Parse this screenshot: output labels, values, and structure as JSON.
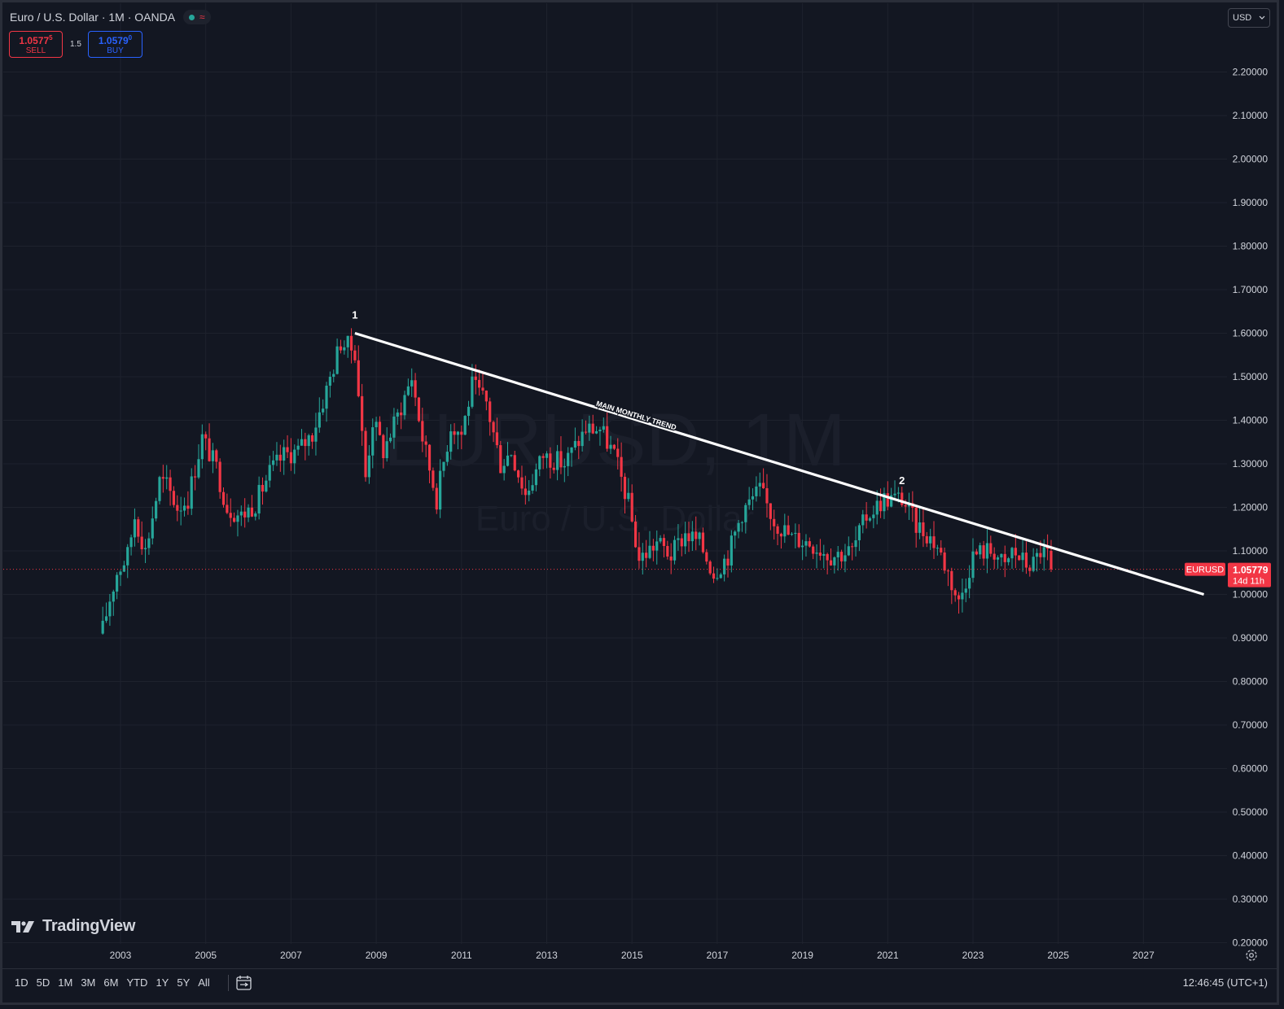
{
  "header": {
    "title": "Euro / U.S. Dollar · 1M · OANDA"
  },
  "trade": {
    "sell_price_main": "1.0577",
    "sell_price_sup": "5",
    "sell_label": "SELL",
    "spread": "1.5",
    "buy_price_main": "1.0579",
    "buy_price_sup": "0",
    "buy_label": "BUY"
  },
  "currency_button": {
    "label": "USD"
  },
  "price_tag": {
    "symbol": "EURUSD",
    "price": "1.05779",
    "countdown": "14d 11h"
  },
  "timeframes": [
    "1D",
    "5D",
    "1M",
    "3M",
    "6M",
    "YTD",
    "1Y",
    "5Y",
    "All"
  ],
  "clock": "12:46:45 (UTC+1)",
  "logo": {
    "text": "TradingView"
  },
  "watermark": {
    "line1": "EURUSD, 1M",
    "line2": "Euro / U.S. Dollar"
  },
  "colors": {
    "up": "#26a69a",
    "down": "#f23645",
    "background": "#131722",
    "grid": "#1e222d",
    "trend": "#ffffff"
  },
  "icons": [
    "status-dot-icon",
    "delay-wave-icon",
    "chevron-down-icon",
    "calendar-range-icon",
    "gear-icon",
    "tradingview-logo-icon"
  ],
  "chart_data": {
    "type": "candlestick",
    "symbol": "EURUSD",
    "timeframe": "1M",
    "x_ticks": [
      "2003",
      "2005",
      "2007",
      "2009",
      "2011",
      "2013",
      "2015",
      "2017",
      "2019",
      "2021",
      "2023",
      "2025",
      "2027"
    ],
    "y_ticks": [
      "2.20000",
      "2.10000",
      "2.00000",
      "1.90000",
      "1.80000",
      "1.70000",
      "1.60000",
      "1.50000",
      "1.40000",
      "1.30000",
      "1.20000",
      "1.10000",
      "1.00000",
      "0.90000",
      "0.80000",
      "0.70000",
      "0.60000",
      "0.50000",
      "0.40000",
      "0.30000",
      "0.20000"
    ],
    "ylim": [
      0.2,
      2.28
    ],
    "last_price": 1.05779,
    "close_path": [
      [
        "2002-08",
        0.92
      ],
      [
        "2002-10",
        0.99
      ],
      [
        "2002-12",
        1.05
      ],
      [
        "2003-03",
        1.09
      ],
      [
        "2003-05",
        1.18
      ],
      [
        "2003-08",
        1.1
      ],
      [
        "2003-12",
        1.26
      ],
      [
        "2004-02",
        1.25
      ],
      [
        "2004-05",
        1.2
      ],
      [
        "2004-08",
        1.22
      ],
      [
        "2004-12",
        1.36
      ],
      [
        "2005-04",
        1.29
      ],
      [
        "2005-07",
        1.2
      ],
      [
        "2005-11",
        1.18
      ],
      [
        "2006-03",
        1.21
      ],
      [
        "2006-07",
        1.28
      ],
      [
        "2006-11",
        1.32
      ],
      [
        "2007-03",
        1.33
      ],
      [
        "2007-07",
        1.37
      ],
      [
        "2007-11",
        1.47
      ],
      [
        "2008-03",
        1.58
      ],
      [
        "2008-07",
        1.56
      ],
      [
        "2008-10",
        1.27
      ],
      [
        "2008-12",
        1.4
      ],
      [
        "2009-03",
        1.33
      ],
      [
        "2009-07",
        1.41
      ],
      [
        "2009-11",
        1.5
      ],
      [
        "2010-02",
        1.36
      ],
      [
        "2010-06",
        1.22
      ],
      [
        "2010-10",
        1.39
      ],
      [
        "2011-01",
        1.37
      ],
      [
        "2011-04",
        1.48
      ],
      [
        "2011-08",
        1.44
      ],
      [
        "2011-12",
        1.3
      ],
      [
        "2012-03",
        1.33
      ],
      [
        "2012-07",
        1.23
      ],
      [
        "2012-12",
        1.32
      ],
      [
        "2013-06",
        1.3
      ],
      [
        "2013-12",
        1.38
      ],
      [
        "2014-04",
        1.38
      ],
      [
        "2014-08",
        1.32
      ],
      [
        "2014-12",
        1.21
      ],
      [
        "2015-03",
        1.08
      ],
      [
        "2015-08",
        1.12
      ],
      [
        "2015-12",
        1.09
      ],
      [
        "2016-04",
        1.14
      ],
      [
        "2016-08",
        1.12
      ],
      [
        "2016-12",
        1.05
      ],
      [
        "2017-04",
        1.09
      ],
      [
        "2017-08",
        1.19
      ],
      [
        "2018-01",
        1.24
      ],
      [
        "2018-05",
        1.17
      ],
      [
        "2018-10",
        1.13
      ],
      [
        "2019-03",
        1.12
      ],
      [
        "2019-09",
        1.09
      ],
      [
        "2020-03",
        1.1
      ],
      [
        "2020-07",
        1.18
      ],
      [
        "2020-12",
        1.22
      ],
      [
        "2021-05",
        1.22
      ],
      [
        "2021-09",
        1.16
      ],
      [
        "2021-12",
        1.14
      ],
      [
        "2022-03",
        1.11
      ],
      [
        "2022-06",
        1.05
      ],
      [
        "2022-09",
        0.98
      ],
      [
        "2023-01",
        1.09
      ],
      [
        "2023-04",
        1.1
      ],
      [
        "2023-07",
        1.1
      ],
      [
        "2023-10",
        1.06
      ],
      [
        "2023-12",
        1.1
      ],
      [
        "2024-04",
        1.07
      ],
      [
        "2024-06",
        1.07
      ],
      [
        "2024-08",
        1.1
      ],
      [
        "2024-10",
        1.09
      ],
      [
        "2024-11",
        1.0578
      ]
    ],
    "trendline": {
      "label": "MAIN MONTHLY TREND",
      "points": [
        [
          "2008-07",
          1.6
        ],
        [
          "2028-06",
          1.0
        ]
      ]
    },
    "annotations": [
      {
        "text": "1",
        "x": "2008-07",
        "y": 1.6
      },
      {
        "text": "2",
        "x": "2021-05",
        "y": 1.22
      }
    ]
  }
}
